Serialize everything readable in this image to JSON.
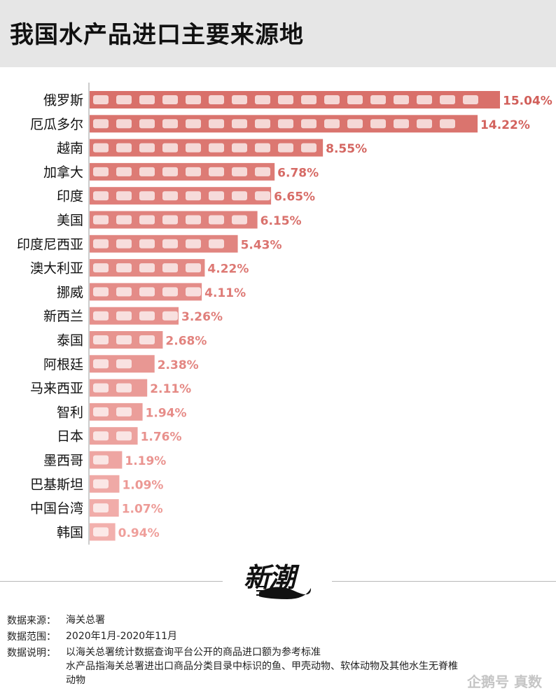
{
  "title": "我国水产品进口主要来源地",
  "chart_data": {
    "type": "bar",
    "orientation": "horizontal",
    "categories": [
      "俄罗斯",
      "厄瓜多尔",
      "越南",
      "加拿大",
      "印度",
      "美国",
      "印度尼西亚",
      "澳大利亚",
      "挪威",
      "新西兰",
      "泰国",
      "阿根廷",
      "马来西亚",
      "智利",
      "日本",
      "墨西哥",
      "巴基斯坦",
      "中国台湾",
      "韩国"
    ],
    "values": [
      15.04,
      14.22,
      8.55,
      6.78,
      6.65,
      6.15,
      5.43,
      4.22,
      4.11,
      3.26,
      2.68,
      2.38,
      2.11,
      1.94,
      1.76,
      1.19,
      1.09,
      1.07,
      0.94
    ],
    "value_labels": [
      "15.04%",
      "14.22%",
      "8.55%",
      "6.78%",
      "6.65%",
      "6.15%",
      "5.43%",
      "4.22%",
      "4.11%",
      "3.26%",
      "2.68%",
      "2.38%",
      "2.11%",
      "1.94%",
      "1.76%",
      "1.19%",
      "1.09%",
      "1.07%",
      "0.94%"
    ],
    "unit": "%",
    "xlim": [
      0,
      15.04
    ],
    "grid": false,
    "colors": {
      "bar_dark": "#d9706a",
      "bar_light": "#f2b0ad",
      "label_dark": "#d15f5a",
      "label_light": "#ef9f9b"
    }
  },
  "logo": {
    "text": "新潮"
  },
  "notes": [
    {
      "key": "数据来源：",
      "lines": [
        "海关总署"
      ]
    },
    {
      "key": "数据范围：",
      "lines": [
        "2020年1月-2020年11月"
      ]
    },
    {
      "key": "数据说明：",
      "lines": [
        "以海关总署统计数据查询平台公开的商品进口额为参考标准",
        "水产品指海关总署进出口商品分类目录中标识的鱼、甲壳动物、软体动物及其他水生无脊椎",
        "动物"
      ]
    }
  ],
  "watermark": "企鹅号 真数"
}
